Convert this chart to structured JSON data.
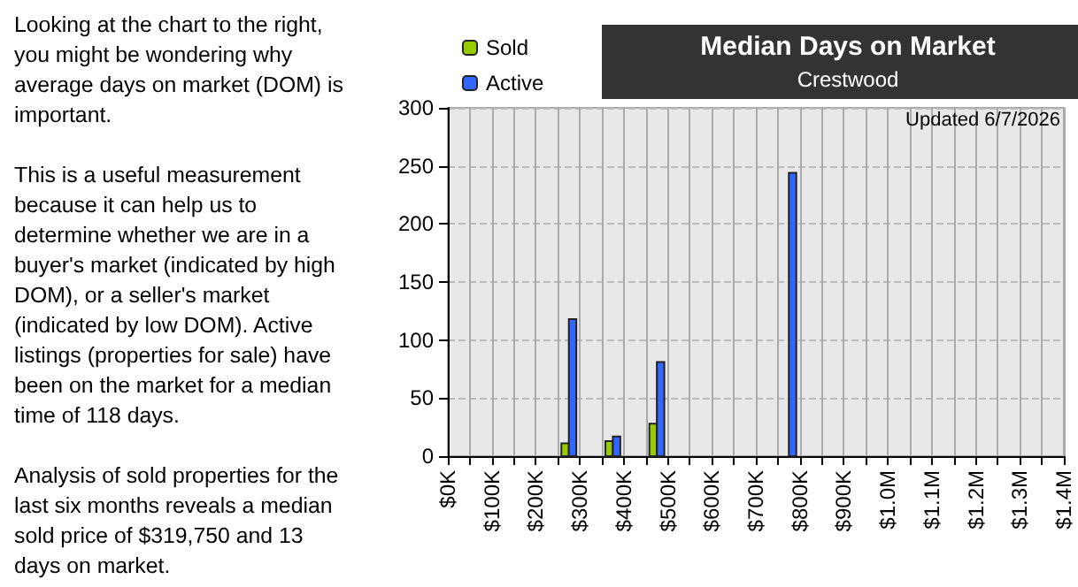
{
  "chart_data": {
    "type": "histogram",
    "title": "Median Days on Market",
    "subtitle": "Crestwood",
    "annotations": [
      "Looking at the chart to the right, you might be wondering why average days on market (DOM) is important.",
      "This is a useful measurement because it can help us to determine whether we are in a buyer's market (indicated by high DOM), or a seller's market (indicated by low DOM).  Active listings (properties for sale) have been on the market for a median time of 118 days.",
      "Analysis of sold properties for the last six months reveals a median sold price of $319,750 and 13 days on market.",
      "Updated 6/7/2026"
    ],
    "bins": [
      0,
      50000,
      100000,
      150000,
      200000,
      250000,
      300000,
      350000,
      400000,
      450000,
      500000,
      550000,
      600000,
      650000,
      700000,
      750000,
      800000,
      850000,
      900000,
      950000,
      1000000,
      1050000,
      1100000,
      1150000,
      1200000,
      1250000,
      1300000,
      1350000,
      1400000
    ],
    "series": [
      {
        "name": "Sold",
        "color": "#99cc00",
        "values": [
          0,
          0,
          0,
          0,
          0,
          11,
          0,
          13,
          0,
          28,
          0,
          0,
          0,
          0,
          0,
          0,
          0,
          0,
          0,
          0,
          0,
          0,
          0,
          0,
          0,
          0,
          0,
          0
        ]
      },
      {
        "name": "Active",
        "color": "#3366ff",
        "values": [
          0,
          0,
          0,
          0,
          0,
          118,
          0,
          17,
          0,
          81,
          0,
          0,
          0,
          0,
          0,
          244,
          0,
          0,
          0,
          0,
          0,
          0,
          0,
          0,
          0,
          0,
          0,
          0
        ]
      }
    ],
    "xlim": [
      0,
      1400000
    ],
    "xticks": [
      {
        "value": 0,
        "label": "$0K"
      },
      {
        "value": 50000,
        "label": null
      },
      {
        "value": 100000,
        "label": "$100K"
      },
      {
        "value": 150000,
        "label": null
      },
      {
        "value": 200000,
        "label": "$200K"
      },
      {
        "value": 250000,
        "label": null
      },
      {
        "value": 300000,
        "label": "$300K"
      },
      {
        "value": 350000,
        "label": null
      },
      {
        "value": 400000,
        "label": "$400K"
      },
      {
        "value": 450000,
        "label": null
      },
      {
        "value": 500000,
        "label": "$500K"
      },
      {
        "value": 550000,
        "label": null
      },
      {
        "value": 600000,
        "label": "$600K"
      },
      {
        "value": 650000,
        "label": null
      },
      {
        "value": 700000,
        "label": "$700K"
      },
      {
        "value": 750000,
        "label": null
      },
      {
        "value": 800000,
        "label": "$800K"
      },
      {
        "value": 850000,
        "label": null
      },
      {
        "value": 900000,
        "label": "$900K"
      },
      {
        "value": 950000,
        "label": null
      },
      {
        "value": 1000000,
        "label": "$1.0M"
      },
      {
        "value": 1050000,
        "label": null
      },
      {
        "value": 1100000,
        "label": "$1.1M"
      },
      {
        "value": 1150000,
        "label": null
      },
      {
        "value": 1200000,
        "label": "$1.2M"
      },
      {
        "value": 1250000,
        "label": null
      },
      {
        "value": 1300000,
        "label": "$1.3M"
      },
      {
        "value": 1350000,
        "label": null
      },
      {
        "value": 1400000,
        "label": "$1.4M"
      }
    ],
    "ylim": [
      0,
      300
    ],
    "yticks": [
      0,
      50,
      100,
      150,
      200,
      250,
      300
    ],
    "grid": true,
    "legend": "top left"
  }
}
